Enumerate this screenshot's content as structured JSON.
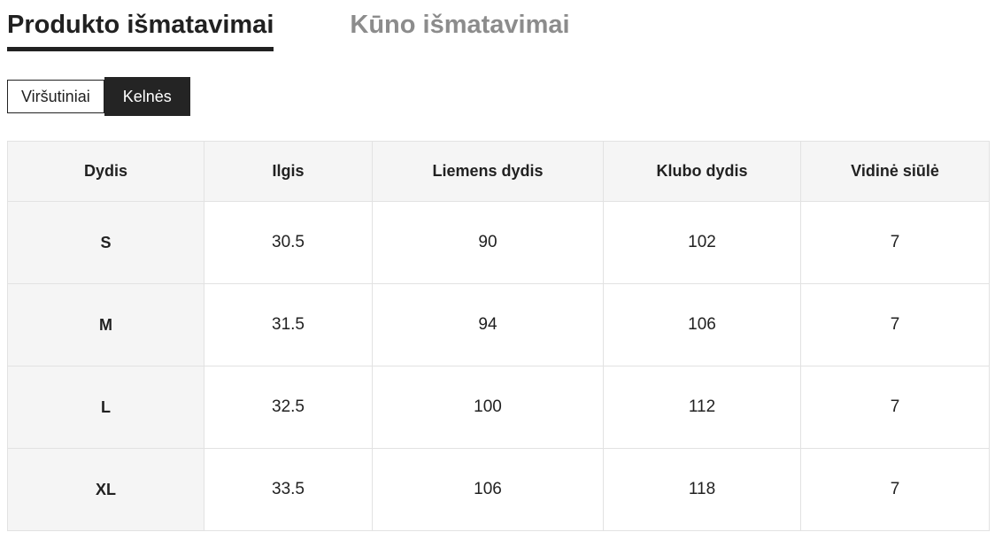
{
  "tabs": [
    {
      "label": "Produkto išmatavimai",
      "active": true
    },
    {
      "label": "Kūno išmatavimai",
      "active": false
    }
  ],
  "toggles": [
    {
      "label": "Viršutiniai",
      "active": false
    },
    {
      "label": "Kelnės",
      "active": true
    }
  ],
  "table": {
    "headers": [
      "Dydis",
      "Ilgis",
      "Liemens dydis",
      "Klubo dydis",
      "Vidinė siūlė"
    ],
    "rows": [
      [
        "S",
        "30.5",
        "90",
        "102",
        "7"
      ],
      [
        "M",
        "31.5",
        "94",
        "106",
        "7"
      ],
      [
        "L",
        "32.5",
        "100",
        "112",
        "7"
      ],
      [
        "XL",
        "33.5",
        "106",
        "118",
        "7"
      ]
    ]
  },
  "colors": {
    "text_dark": "#212121",
    "tab_inactive": "#8c8c8c",
    "cell_background": "#f5f5f5",
    "table_border": "#e2e2e2",
    "toggle_active_background": "#242424"
  }
}
